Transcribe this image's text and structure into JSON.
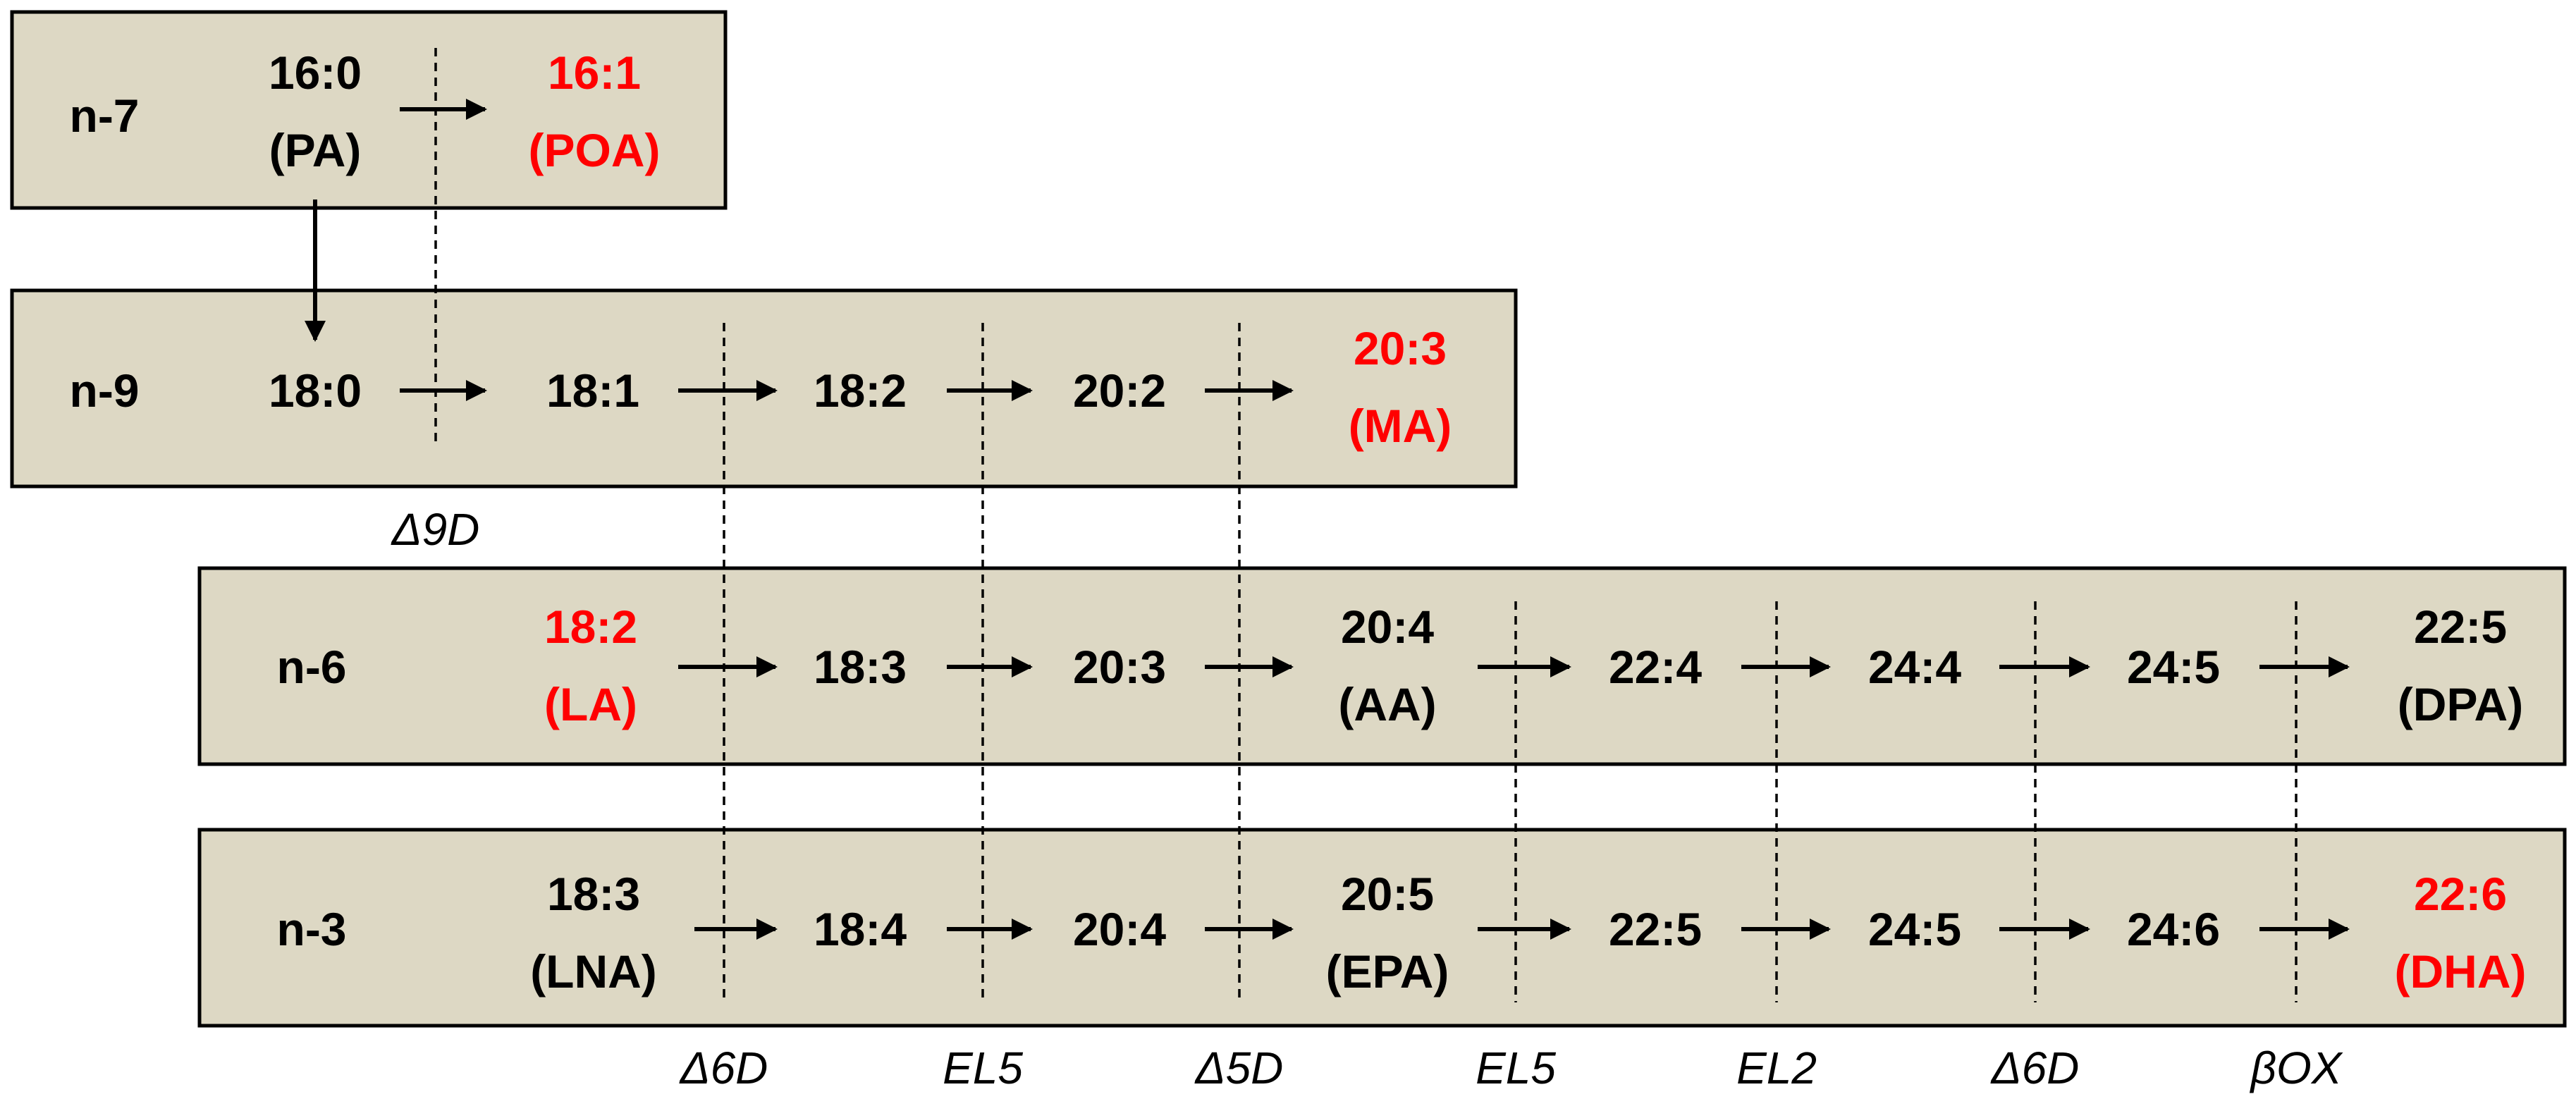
{
  "colors": {
    "box_fill": "#ddd8c4",
    "highlight": "#ff0000",
    "text": "#000000"
  },
  "rows": {
    "n7": {
      "label": "n-7",
      "nodes": [
        {
          "text": "16:0",
          "sub": "(PA)",
          "highlight": false
        },
        {
          "text": "16:1",
          "sub": "(POA)",
          "highlight": true
        }
      ]
    },
    "n9": {
      "label": "n-9",
      "nodes": [
        {
          "text": "18:0",
          "highlight": false
        },
        {
          "text": "18:1",
          "highlight": false
        },
        {
          "text": "18:2",
          "highlight": false
        },
        {
          "text": "20:2",
          "highlight": false
        },
        {
          "text": "20:3",
          "sub": "(MA)",
          "highlight": true
        }
      ]
    },
    "n6": {
      "label": "n-6",
      "nodes": [
        {
          "text": "18:2",
          "sub": "(LA)",
          "highlight": true
        },
        {
          "text": "18:3",
          "highlight": false
        },
        {
          "text": "20:3",
          "highlight": false
        },
        {
          "text": "20:4",
          "sub": "(AA)",
          "highlight": false
        },
        {
          "text": "22:4",
          "highlight": false
        },
        {
          "text": "24:4",
          "highlight": false
        },
        {
          "text": "24:5",
          "highlight": false
        },
        {
          "text": "22:5",
          "sub": "(DPA)",
          "highlight": false
        }
      ]
    },
    "n3": {
      "label": "n-3",
      "nodes": [
        {
          "text": "18:3",
          "sub": "(LNA)",
          "highlight": false
        },
        {
          "text": "18:4",
          "highlight": false
        },
        {
          "text": "20:4",
          "highlight": false
        },
        {
          "text": "20:5",
          "sub": "(EPA)",
          "highlight": false
        },
        {
          "text": "22:5",
          "highlight": false
        },
        {
          "text": "24:5",
          "highlight": false
        },
        {
          "text": "24:6",
          "highlight": false
        },
        {
          "text": "22:6",
          "sub": "(DHA)",
          "highlight": true
        }
      ]
    }
  },
  "enzymes": {
    "d9d": "Δ9D",
    "bottom": [
      "Δ6D",
      "EL5",
      "Δ5D",
      "EL5",
      "EL2",
      "Δ6D",
      "βOX"
    ]
  }
}
